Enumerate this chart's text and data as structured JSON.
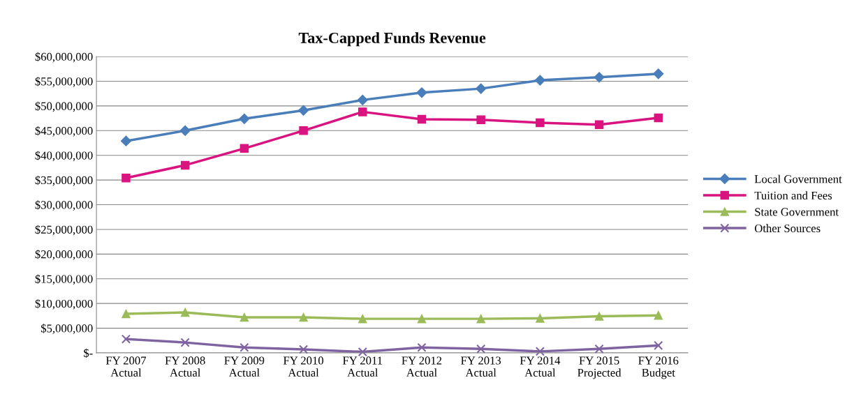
{
  "chart_data": {
    "type": "line",
    "title": "Tax-Capped Funds Revenue",
    "categories": [
      "FY 2007\nActual",
      "FY 2008\nActual",
      "FY 2009\nActual",
      "FY 2010\nActual",
      "FY 2011\nActual",
      "FY 2012\nActual",
      "FY 2013\nActual",
      "FY 2014\nActual",
      "FY 2015\nProjected",
      "FY 2016\nBudget"
    ],
    "series": [
      {
        "name": "Local Government",
        "color": "#4a7ebb",
        "marker": "diamond",
        "values": [
          42900000,
          45000000,
          47400000,
          49100000,
          51200000,
          52700000,
          53500000,
          55200000,
          55800000,
          56500000
        ]
      },
      {
        "name": "Tuition and Fees",
        "color": "#d9137f",
        "marker": "square",
        "values": [
          35400000,
          38000000,
          41400000,
          45000000,
          48800000,
          47300000,
          47200000,
          46600000,
          46200000,
          47600000
        ]
      },
      {
        "name": "State Government",
        "color": "#9bbb59",
        "marker": "triangle",
        "values": [
          7900000,
          8200000,
          7200000,
          7200000,
          6900000,
          6900000,
          6900000,
          7000000,
          7400000,
          7600000
        ]
      },
      {
        "name": "Other Sources",
        "color": "#7f63a1",
        "marker": "cross",
        "values": [
          2800000,
          2100000,
          1100000,
          700000,
          200000,
          1100000,
          800000,
          300000,
          800000,
          1500000
        ]
      }
    ],
    "ylim": [
      0,
      60000000
    ],
    "yticks": [
      {
        "value": 0,
        "label": "$-"
      },
      {
        "value": 5000000,
        "label": "$5,000,000"
      },
      {
        "value": 10000000,
        "label": "$10,000,000"
      },
      {
        "value": 15000000,
        "label": "$15,000,000"
      },
      {
        "value": 20000000,
        "label": "$20,000,000"
      },
      {
        "value": 25000000,
        "label": "$25,000,000"
      },
      {
        "value": 30000000,
        "label": "$30,000,000"
      },
      {
        "value": 35000000,
        "label": "$35,000,000"
      },
      {
        "value": 40000000,
        "label": "$40,000,000"
      },
      {
        "value": 45000000,
        "label": "$45,000,000"
      },
      {
        "value": 50000000,
        "label": "$50,000,000"
      },
      {
        "value": 55000000,
        "label": "$55,000,000"
      },
      {
        "value": 60000000,
        "label": "$60,000,000"
      }
    ],
    "grid": "y",
    "legend": "right",
    "line_style": "solid"
  }
}
